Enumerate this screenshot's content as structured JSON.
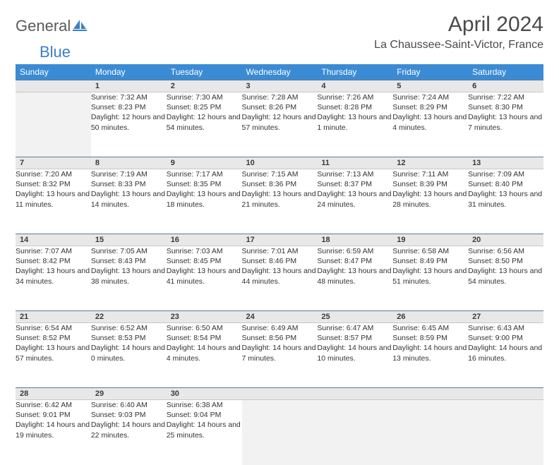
{
  "logo": {
    "part1": "General",
    "part2": "Blue"
  },
  "title": "April 2024",
  "location": "La Chaussee-Saint-Victor, France",
  "colors": {
    "header_bg": "#3b8bd4",
    "header_text": "#ffffff",
    "daynum_bg": "#e8e8e8",
    "daynum_border_top": "#5a7a9a",
    "logo_gray": "#5a5a5a",
    "logo_blue": "#3b7fc4",
    "text": "#333333"
  },
  "weekdays": [
    "Sunday",
    "Monday",
    "Tuesday",
    "Wednesday",
    "Thursday",
    "Friday",
    "Saturday"
  ],
  "weeks": [
    {
      "nums": [
        "",
        "1",
        "2",
        "3",
        "4",
        "5",
        "6"
      ],
      "cells": [
        null,
        {
          "sunrise": "Sunrise: 7:32 AM",
          "sunset": "Sunset: 8:23 PM",
          "daylight": "Daylight: 12 hours and 50 minutes."
        },
        {
          "sunrise": "Sunrise: 7:30 AM",
          "sunset": "Sunset: 8:25 PM",
          "daylight": "Daylight: 12 hours and 54 minutes."
        },
        {
          "sunrise": "Sunrise: 7:28 AM",
          "sunset": "Sunset: 8:26 PM",
          "daylight": "Daylight: 12 hours and 57 minutes."
        },
        {
          "sunrise": "Sunrise: 7:26 AM",
          "sunset": "Sunset: 8:28 PM",
          "daylight": "Daylight: 13 hours and 1 minute."
        },
        {
          "sunrise": "Sunrise: 7:24 AM",
          "sunset": "Sunset: 8:29 PM",
          "daylight": "Daylight: 13 hours and 4 minutes."
        },
        {
          "sunrise": "Sunrise: 7:22 AM",
          "sunset": "Sunset: 8:30 PM",
          "daylight": "Daylight: 13 hours and 7 minutes."
        }
      ]
    },
    {
      "nums": [
        "7",
        "8",
        "9",
        "10",
        "11",
        "12",
        "13"
      ],
      "cells": [
        {
          "sunrise": "Sunrise: 7:20 AM",
          "sunset": "Sunset: 8:32 PM",
          "daylight": "Daylight: 13 hours and 11 minutes."
        },
        {
          "sunrise": "Sunrise: 7:19 AM",
          "sunset": "Sunset: 8:33 PM",
          "daylight": "Daylight: 13 hours and 14 minutes."
        },
        {
          "sunrise": "Sunrise: 7:17 AM",
          "sunset": "Sunset: 8:35 PM",
          "daylight": "Daylight: 13 hours and 18 minutes."
        },
        {
          "sunrise": "Sunrise: 7:15 AM",
          "sunset": "Sunset: 8:36 PM",
          "daylight": "Daylight: 13 hours and 21 minutes."
        },
        {
          "sunrise": "Sunrise: 7:13 AM",
          "sunset": "Sunset: 8:37 PM",
          "daylight": "Daylight: 13 hours and 24 minutes."
        },
        {
          "sunrise": "Sunrise: 7:11 AM",
          "sunset": "Sunset: 8:39 PM",
          "daylight": "Daylight: 13 hours and 28 minutes."
        },
        {
          "sunrise": "Sunrise: 7:09 AM",
          "sunset": "Sunset: 8:40 PM",
          "daylight": "Daylight: 13 hours and 31 minutes."
        }
      ]
    },
    {
      "nums": [
        "14",
        "15",
        "16",
        "17",
        "18",
        "19",
        "20"
      ],
      "cells": [
        {
          "sunrise": "Sunrise: 7:07 AM",
          "sunset": "Sunset: 8:42 PM",
          "daylight": "Daylight: 13 hours and 34 minutes."
        },
        {
          "sunrise": "Sunrise: 7:05 AM",
          "sunset": "Sunset: 8:43 PM",
          "daylight": "Daylight: 13 hours and 38 minutes."
        },
        {
          "sunrise": "Sunrise: 7:03 AM",
          "sunset": "Sunset: 8:45 PM",
          "daylight": "Daylight: 13 hours and 41 minutes."
        },
        {
          "sunrise": "Sunrise: 7:01 AM",
          "sunset": "Sunset: 8:46 PM",
          "daylight": "Daylight: 13 hours and 44 minutes."
        },
        {
          "sunrise": "Sunrise: 6:59 AM",
          "sunset": "Sunset: 8:47 PM",
          "daylight": "Daylight: 13 hours and 48 minutes."
        },
        {
          "sunrise": "Sunrise: 6:58 AM",
          "sunset": "Sunset: 8:49 PM",
          "daylight": "Daylight: 13 hours and 51 minutes."
        },
        {
          "sunrise": "Sunrise: 6:56 AM",
          "sunset": "Sunset: 8:50 PM",
          "daylight": "Daylight: 13 hours and 54 minutes."
        }
      ]
    },
    {
      "nums": [
        "21",
        "22",
        "23",
        "24",
        "25",
        "26",
        "27"
      ],
      "cells": [
        {
          "sunrise": "Sunrise: 6:54 AM",
          "sunset": "Sunset: 8:52 PM",
          "daylight": "Daylight: 13 hours and 57 minutes."
        },
        {
          "sunrise": "Sunrise: 6:52 AM",
          "sunset": "Sunset: 8:53 PM",
          "daylight": "Daylight: 14 hours and 0 minutes."
        },
        {
          "sunrise": "Sunrise: 6:50 AM",
          "sunset": "Sunset: 8:54 PM",
          "daylight": "Daylight: 14 hours and 4 minutes."
        },
        {
          "sunrise": "Sunrise: 6:49 AM",
          "sunset": "Sunset: 8:56 PM",
          "daylight": "Daylight: 14 hours and 7 minutes."
        },
        {
          "sunrise": "Sunrise: 6:47 AM",
          "sunset": "Sunset: 8:57 PM",
          "daylight": "Daylight: 14 hours and 10 minutes."
        },
        {
          "sunrise": "Sunrise: 6:45 AM",
          "sunset": "Sunset: 8:59 PM",
          "daylight": "Daylight: 14 hours and 13 minutes."
        },
        {
          "sunrise": "Sunrise: 6:43 AM",
          "sunset": "Sunset: 9:00 PM",
          "daylight": "Daylight: 14 hours and 16 minutes."
        }
      ]
    },
    {
      "nums": [
        "28",
        "29",
        "30",
        "",
        "",
        "",
        ""
      ],
      "cells": [
        {
          "sunrise": "Sunrise: 6:42 AM",
          "sunset": "Sunset: 9:01 PM",
          "daylight": "Daylight: 14 hours and 19 minutes."
        },
        {
          "sunrise": "Sunrise: 6:40 AM",
          "sunset": "Sunset: 9:03 PM",
          "daylight": "Daylight: 14 hours and 22 minutes."
        },
        {
          "sunrise": "Sunrise: 6:38 AM",
          "sunset": "Sunset: 9:04 PM",
          "daylight": "Daylight: 14 hours and 25 minutes."
        },
        null,
        null,
        null,
        null
      ]
    }
  ]
}
